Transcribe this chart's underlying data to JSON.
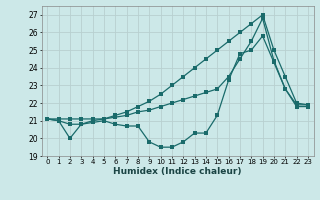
{
  "title": "",
  "xlabel": "Humidex (Indice chaleur)",
  "bg_color": "#cce8e8",
  "grid_color": "#b8d0d0",
  "line_color": "#1a6b6b",
  "xlim": [
    -0.5,
    23.5
  ],
  "ylim": [
    19,
    27.5
  ],
  "xticks": [
    0,
    1,
    2,
    3,
    4,
    5,
    6,
    7,
    8,
    9,
    10,
    11,
    12,
    13,
    14,
    15,
    16,
    17,
    18,
    19,
    20,
    21,
    22,
    23
  ],
  "yticks": [
    19,
    20,
    21,
    22,
    23,
    24,
    25,
    26,
    27
  ],
  "line1": [
    21.1,
    21.0,
    20.0,
    20.8,
    20.9,
    21.0,
    20.8,
    20.7,
    20.7,
    19.8,
    19.5,
    19.5,
    19.8,
    20.3,
    20.3,
    21.3,
    23.3,
    24.8,
    25.0,
    25.8,
    24.3,
    22.8,
    21.8,
    21.8
  ],
  "line2": [
    21.1,
    21.1,
    21.1,
    21.1,
    21.1,
    21.1,
    21.2,
    21.3,
    21.5,
    21.6,
    21.8,
    22.0,
    22.2,
    22.4,
    22.6,
    22.8,
    23.5,
    24.5,
    25.5,
    26.8,
    24.4,
    22.8,
    21.9,
    21.9
  ],
  "line3": [
    21.1,
    21.0,
    20.8,
    20.8,
    21.0,
    21.1,
    21.3,
    21.5,
    21.8,
    22.1,
    22.5,
    23.0,
    23.5,
    24.0,
    24.5,
    25.0,
    25.5,
    26.0,
    26.5,
    27.0,
    25.0,
    23.5,
    22.0,
    21.9
  ]
}
